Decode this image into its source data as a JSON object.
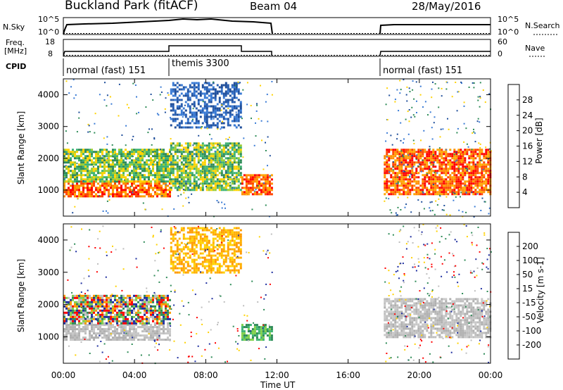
{
  "header": {
    "station": "Buckland Park (fitACF)",
    "beam": "Beam 04",
    "date": "28/May/2016"
  },
  "noise_panel": {
    "left_label": "N.Sky",
    "right_label": "N.Search",
    "left_ticks": [
      "10^5",
      "10^0"
    ],
    "right_ticks": [
      "10^5",
      "10^0"
    ]
  },
  "freq_panel": {
    "left_label_1": "Freq.",
    "left_label_2": "[MHz]",
    "right_label": "Nave",
    "left_ticks": [
      "18",
      "8"
    ],
    "right_ticks": [
      "60",
      "0"
    ]
  },
  "cpid": {
    "label": "CPID",
    "segments": [
      {
        "start_hour": 0,
        "label": "normal (fast) 151"
      },
      {
        "start_hour": 6,
        "label": "themis 3300"
      },
      {
        "start_hour": 18,
        "label": "normal (fast) 151"
      }
    ]
  },
  "power_panel": {
    "ylabel": "Slant Range [km]",
    "cbar_label": "Power [dB]",
    "cbar_ticks": [
      "28",
      "24",
      "20",
      "16",
      "12",
      "8",
      "4"
    ],
    "cbar_colors": [
      "#ff0000",
      "#ff5a00",
      "#ff9a00",
      "#ffd200",
      "#9acd32",
      "#2e8b57",
      "#1f4e9a",
      "#0000ff"
    ]
  },
  "velocity_panel": {
    "ylabel": "Slant Range [km]",
    "cbar_label": "Velocity [m s-1]",
    "cbar_ticks": [
      "200",
      "100",
      "50",
      "15",
      "-15",
      "-50",
      "-100",
      "-200"
    ],
    "cbar_colors": [
      "#1f2fa0",
      "#2e6fb0",
      "#2e8b57",
      "#7fd04a",
      "#bebebe",
      "#ffd200",
      "#ff9a00",
      "#ff5a00",
      "#ff0000"
    ]
  },
  "y_ticks": [
    "1000",
    "2000",
    "3000",
    "4000"
  ],
  "x_ticks": [
    "00:00",
    "04:00",
    "08:00",
    "12:00",
    "16:00",
    "20:00",
    "00:00"
  ],
  "xlabel": "Time UT",
  "chart_data": {
    "type": "heatmap",
    "x_range_hours": [
      0,
      24
    ],
    "y_range_km": [
      180,
      4500
    ],
    "data_gap_hours": [
      11.7,
      18
    ],
    "power_bands": [
      {
        "t0": 0,
        "t1": 6,
        "r0": 800,
        "r1": 1300,
        "level": "high"
      },
      {
        "t0": 0,
        "t1": 6,
        "r0": 1300,
        "r1": 2300,
        "level": "mid"
      },
      {
        "t0": 6,
        "t1": 10,
        "r0": 3000,
        "r1": 4400,
        "level": "low"
      },
      {
        "t0": 6,
        "t1": 10,
        "r0": 1000,
        "r1": 2500,
        "level": "mid"
      },
      {
        "t0": 10,
        "t1": 11.7,
        "r0": 900,
        "r1": 1500,
        "level": "high"
      },
      {
        "t0": 18,
        "t1": 24,
        "r0": 900,
        "r1": 2300,
        "level": "high"
      }
    ],
    "velocity_bands": [
      {
        "t0": 0,
        "t1": 6,
        "r0": 900,
        "r1": 1400,
        "level": "zero"
      },
      {
        "t0": 0,
        "t1": 6,
        "r0": 1400,
        "r1": 2300,
        "level": "mixed"
      },
      {
        "t0": 6,
        "t1": 10,
        "r0": 3000,
        "r1": 4400,
        "level": "neg"
      },
      {
        "t0": 10,
        "t1": 11.7,
        "r0": 900,
        "r1": 1400,
        "level": "pos"
      },
      {
        "t0": 18,
        "t1": 24,
        "r0": 1000,
        "r1": 2200,
        "level": "zero"
      }
    ]
  }
}
